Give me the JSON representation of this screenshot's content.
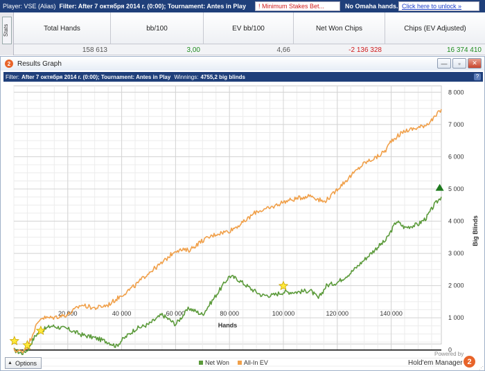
{
  "topbar": {
    "player": "Player: VSE (Alias)",
    "filter": "Filter: After 7 октября 2014 г. (0:00); Tournament: Antes in Play",
    "warning": "! Minimum Stakes Bet...",
    "omaha": "No Omaha hands.",
    "unlock": "Click here to unlock  »"
  },
  "stats": {
    "tab_label": "Stats",
    "headers": [
      "Total Hands",
      "bb/100",
      "EV bb/100",
      "Net Won Chips",
      "Chips (EV Adjusted)"
    ],
    "values": [
      "158 613",
      "3,00",
      "4,66",
      "-2 136 328",
      "16 374 410"
    ]
  },
  "window": {
    "title": "Results Graph",
    "icon_label": "2",
    "btn_min": "—",
    "btn_max": "▫",
    "btn_close": "✕",
    "filter_prefix": "Filter:",
    "filter_text": "After 7 октября 2014 г. (0:00); Tournament: Antes in Play",
    "winnings_label": "Winnings:",
    "winnings_value": "4755,2 big blinds",
    "help": "?"
  },
  "footer": {
    "options_label": "Options",
    "options_icon": "triangle-up-icon",
    "powered_label": "Powered by",
    "brand": "Hold'em Manager",
    "logo_mark": "2"
  },
  "colors": {
    "net_won": "#5b9a3a",
    "all_in_ev": "#f0a04a",
    "topbar_bg": "#1f3f7a",
    "positive": "#1e8b1e",
    "negative": "#d01a1a"
  },
  "chart_data": {
    "type": "line",
    "xlabel": "Hands",
    "ylabel": "Big Blinds",
    "xlim": [
      0,
      158613
    ],
    "ylim": [
      -500,
      8200
    ],
    "x_ticks": [
      20000,
      40000,
      60000,
      80000,
      100000,
      120000,
      140000
    ],
    "x_tick_labels": [
      "20 000",
      "40 000",
      "60 000",
      "80 000",
      "100 000",
      "120 000",
      "140 000"
    ],
    "y_ticks": [
      0,
      1000,
      2000,
      3000,
      4000,
      5000,
      6000,
      7000,
      8000
    ],
    "y_tick_labels": [
      "0",
      "1 000",
      "2 000",
      "3 000",
      "4 000",
      "5 000",
      "6 000",
      "7 000",
      "8 000"
    ],
    "grid": true,
    "legend_position": "bottom-center",
    "series": [
      {
        "name": "Net Won",
        "color": "#5b9a3a",
        "x": [
          0,
          3000,
          5000,
          8000,
          10000,
          14000,
          20000,
          25000,
          30000,
          35000,
          38000,
          40000,
          45000,
          50000,
          55000,
          60000,
          65000,
          70000,
          75000,
          80000,
          83000,
          88000,
          92000,
          96000,
          100000,
          105000,
          110000,
          113000,
          116000,
          120000,
          125000,
          130000,
          135000,
          138000,
          142000,
          145000,
          150000,
          153000,
          156000,
          158613
        ],
        "values": [
          0,
          -100,
          0,
          450,
          600,
          750,
          650,
          480,
          380,
          250,
          120,
          300,
          650,
          800,
          1100,
          800,
          1300,
          1100,
          1700,
          2300,
          2200,
          1900,
          1700,
          1700,
          1800,
          1800,
          1850,
          1600,
          2000,
          2100,
          2400,
          2800,
          3200,
          3400,
          4000,
          3800,
          3900,
          4100,
          4500,
          4755
        ]
      },
      {
        "name": "All-In EV",
        "color": "#f0a04a",
        "x": [
          0,
          3000,
          5000,
          8000,
          10000,
          14000,
          20000,
          25000,
          30000,
          35000,
          40000,
          45000,
          50000,
          55000,
          60000,
          65000,
          70000,
          75000,
          80000,
          85000,
          90000,
          95000,
          100000,
          105000,
          110000,
          115000,
          118000,
          120000,
          125000,
          130000,
          135000,
          138000,
          140000,
          145000,
          150000,
          153000,
          156000,
          158613
        ],
        "values": [
          0,
          -50,
          100,
          700,
          1000,
          1000,
          1100,
          1400,
          1300,
          1400,
          1700,
          2000,
          2400,
          2700,
          3100,
          3100,
          3400,
          3600,
          3700,
          3950,
          4300,
          4400,
          4600,
          4700,
          4800,
          4600,
          4800,
          5000,
          5400,
          5800,
          6000,
          6200,
          6500,
          6800,
          6900,
          7000,
          7200,
          7475
        ]
      }
    ],
    "markers": [
      {
        "type": "star",
        "x": 200,
        "y": 280
      },
      {
        "type": "star",
        "x": 5000,
        "y": 150
      },
      {
        "type": "star",
        "x": 10000,
        "y": 600
      },
      {
        "type": "star",
        "x": 100000,
        "y": 1990
      },
      {
        "type": "triangle-down",
        "x": 4000,
        "y": -360
      },
      {
        "type": "triangle-up",
        "x": 158000,
        "y": 5050
      }
    ]
  }
}
